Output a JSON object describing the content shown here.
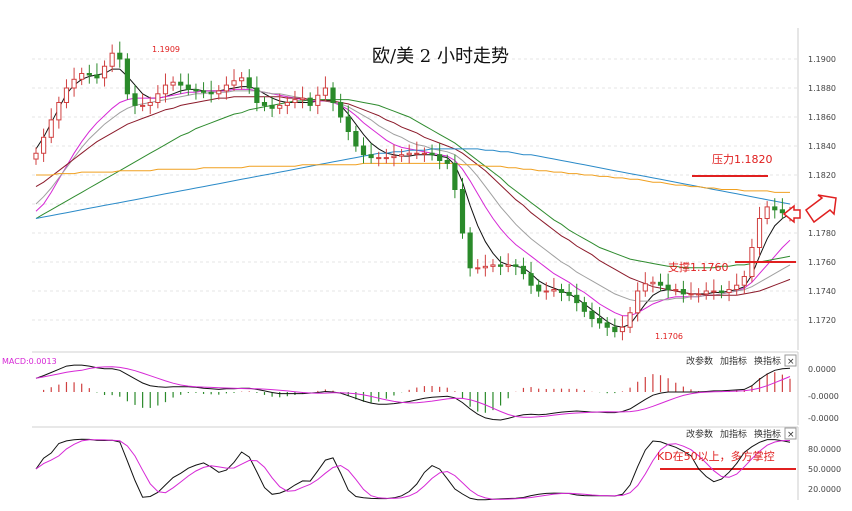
{
  "chart_data": [
    {
      "type": "candlestick",
      "title": "欧/美 2 小时走势",
      "ylim": [
        1.17,
        1.192
      ],
      "yticks": [
        "1.1900",
        "1.1880",
        "1.1860",
        "1.1840",
        "1.1820",
        "1.1780",
        "1.1760",
        "1.1740",
        "1.1720"
      ],
      "annotations": {
        "high": "1.1909",
        "low": "1.1706",
        "resistance": "压力1.1820",
        "support": "支撑1.1760"
      },
      "resistance_level": 1.182,
      "support_level": 1.176,
      "close_series": [
        1.1835,
        1.1846,
        1.1858,
        1.187,
        1.188,
        1.1886,
        1.189,
        1.1889,
        1.1887,
        1.1895,
        1.1904,
        1.19,
        1.1876,
        1.1868,
        1.1868,
        1.187,
        1.1876,
        1.1882,
        1.1884,
        1.1882,
        1.1879,
        1.1878,
        1.1877,
        1.1876,
        1.1878,
        1.1882,
        1.1885,
        1.1887,
        1.188,
        1.187,
        1.1868,
        1.1866,
        1.1868,
        1.187,
        1.1872,
        1.1873,
        1.1868,
        1.1875,
        1.188,
        1.187,
        1.186,
        1.185,
        1.184,
        1.1834,
        1.1832,
        1.1832,
        1.1832,
        1.1833,
        1.1834,
        1.1835,
        1.1835,
        1.1835,
        1.1834,
        1.183,
        1.1828,
        1.181,
        1.178,
        1.1756,
        1.1756,
        1.1757,
        1.1758,
        1.1757,
        1.1758,
        1.1757,
        1.1752,
        1.1744,
        1.174,
        1.174,
        1.1741,
        1.1739,
        1.1737,
        1.1732,
        1.1726,
        1.1721,
        1.1718,
        1.1715,
        1.1712,
        1.1715,
        1.1725,
        1.174,
        1.1745,
        1.1746,
        1.1744,
        1.1741,
        1.1741,
        1.1738,
        1.1738,
        1.1738,
        1.174,
        1.174,
        1.1739,
        1.1741,
        1.1744,
        1.175,
        1.177,
        1.179,
        1.1798,
        1.1796,
        1.1794,
        1.1794
      ],
      "ma_series": [
        {
          "color": "#111111",
          "values": [
            1.1838,
            1.1846,
            1.1856,
            1.1866,
            1.1876,
            1.1882,
            1.1886,
            1.1888,
            1.1889,
            1.189,
            1.1893,
            1.1893,
            1.1888,
            1.1882,
            1.1876,
            1.1873,
            1.1873,
            1.1874,
            1.1876,
            1.1878,
            1.1879,
            1.1879,
            1.1878,
            1.1878,
            1.1878,
            1.1879,
            1.188,
            1.1881,
            1.1881,
            1.1879,
            1.1876,
            1.1873,
            1.1871,
            1.187,
            1.187,
            1.187,
            1.187,
            1.1871,
            1.1872,
            1.1871,
            1.1868,
            1.1862,
            1.1855,
            1.1848,
            1.1842,
            1.1838,
            1.1835,
            1.1834,
            1.1833,
            1.1833,
            1.1834,
            1.1834,
            1.1834,
            1.1833,
            1.1832,
            1.1827,
            1.1815,
            1.1799,
            1.1785,
            1.1774,
            1.1766,
            1.176,
            1.1758,
            1.1757,
            1.1756,
            1.1752,
            1.1747,
            1.1744,
            1.1742,
            1.174,
            1.1738,
            1.1735,
            1.1731,
            1.1727,
            1.1723,
            1.1719,
            1.1716,
            1.1715,
            1.1717,
            1.1724,
            1.1731,
            1.1737,
            1.174,
            1.1741,
            1.174,
            1.1739,
            1.1738,
            1.1738,
            1.1738,
            1.1739,
            1.1739,
            1.174,
            1.1741,
            1.1743,
            1.1751,
            1.1764,
            1.1776,
            1.1785,
            1.179,
            1.1793
          ]
        },
        {
          "color": "#d628d6",
          "values": [
            1.1795,
            1.18,
            1.1808,
            1.1817,
            1.1826,
            1.1835,
            1.1843,
            1.185,
            1.1856,
            1.1861,
            1.1866,
            1.187,
            1.1872,
            1.1873,
            1.1873,
            1.1873,
            1.1873,
            1.1874,
            1.1875,
            1.1876,
            1.1877,
            1.1877,
            1.1878,
            1.1878,
            1.1878,
            1.1878,
            1.1879,
            1.1879,
            1.1879,
            1.1878,
            1.1877,
            1.1876,
            1.1875,
            1.1874,
            1.1873,
            1.1872,
            1.1871,
            1.1871,
            1.1871,
            1.187,
            1.1868,
            1.1865,
            1.1861,
            1.1856,
            1.1852,
            1.1848,
            1.1844,
            1.1841,
            1.1839,
            1.1838,
            1.1837,
            1.1836,
            1.1835,
            1.1834,
            1.1833,
            1.183,
            1.1824,
            1.1816,
            1.1807,
            1.1798,
            1.179,
            1.1783,
            1.1777,
            1.1772,
            1.1768,
            1.1764,
            1.176,
            1.1756,
            1.1752,
            1.1749,
            1.1746,
            1.1742,
            1.1739,
            1.1735,
            1.1731,
            1.1728,
            1.1725,
            1.1723,
            1.1723,
            1.1725,
            1.1728,
            1.1731,
            1.1733,
            1.1735,
            1.1736,
            1.1736,
            1.1736,
            1.1736,
            1.1737,
            1.1737,
            1.1738,
            1.1739,
            1.174,
            1.1742,
            1.1746,
            1.1752,
            1.1758,
            1.1764,
            1.177,
            1.1775
          ]
        },
        {
          "color": "#a0a0a0",
          "values": [
            1.18,
            1.1805,
            1.1811,
            1.1818,
            1.1825,
            1.1832,
            1.1839,
            1.1845,
            1.185,
            1.1855,
            1.1859,
            1.1863,
            1.1866,
            1.1868,
            1.1869,
            1.187,
            1.1871,
            1.1872,
            1.1873,
            1.1874,
            1.1875,
            1.1876,
            1.1876,
            1.1877,
            1.1877,
            1.1877,
            1.1878,
            1.1878,
            1.1878,
            1.1878,
            1.1877,
            1.1876,
            1.1876,
            1.1875,
            1.1874,
            1.1873,
            1.1872,
            1.1872,
            1.1871,
            1.187,
            1.1869,
            1.1867,
            1.1864,
            1.1861,
            1.1858,
            1.1854,
            1.1851,
            1.1848,
            1.1846,
            1.1843,
            1.1841,
            1.184,
            1.1838,
            1.1837,
            1.1836,
            1.1834,
            1.183,
            1.1825,
            1.1819,
            1.1812,
            1.1805,
            1.1798,
            1.1792,
            1.1786,
            1.1781,
            1.1776,
            1.1772,
            1.1768,
            1.1764,
            1.176,
            1.1757,
            1.1753,
            1.175,
            1.1747,
            1.1744,
            1.1741,
            1.1738,
            1.1736,
            1.1734,
            1.1733,
            1.1733,
            1.1733,
            1.1734,
            1.1734,
            1.1735,
            1.1735,
            1.1736,
            1.1736,
            1.1737,
            1.1737,
            1.1738,
            1.1739,
            1.174,
            1.1741,
            1.1743,
            1.1746,
            1.1749,
            1.1752,
            1.1755,
            1.1758
          ]
        },
        {
          "color": "#8b1a2a",
          "values": [
            1.1812,
            1.1815,
            1.1819,
            1.1823,
            1.1827,
            1.1831,
            1.1835,
            1.1839,
            1.1843,
            1.1846,
            1.1849,
            1.1852,
            1.1855,
            1.1857,
            1.1859,
            1.1861,
            1.1863,
            1.1865,
            1.1866,
            1.1868,
            1.1869,
            1.187,
            1.1871,
            1.1872,
            1.1873,
            1.1873,
            1.1874,
            1.1874,
            1.1874,
            1.1874,
            1.1874,
            1.1874,
            1.1874,
            1.1873,
            1.1873,
            1.1873,
            1.1872,
            1.1872,
            1.1871,
            1.1871,
            1.187,
            1.1869,
            1.1867,
            1.1865,
            1.1863,
            1.1861,
            1.1858,
            1.1856,
            1.1853,
            1.1851,
            1.1849,
            1.1846,
            1.1844,
            1.1842,
            1.184,
            1.1838,
            1.1835,
            1.1831,
            1.1827,
            1.1823,
            1.1818,
            1.1813,
            1.1808,
            1.1803,
            1.1799,
            1.1794,
            1.179,
            1.1786,
            1.1782,
            1.1778,
            1.1775,
            1.1771,
            1.1768,
            1.1765,
            1.1761,
            1.1758,
            1.1755,
            1.1752,
            1.1749,
            1.1747,
            1.1745,
            1.1743,
            1.1742,
            1.1741,
            1.174,
            1.1739,
            1.1738,
            1.1738,
            1.1737,
            1.1737,
            1.1737,
            1.1737,
            1.1737,
            1.1738,
            1.1739,
            1.174,
            1.1742,
            1.1744,
            1.1746,
            1.1748
          ]
        },
        {
          "color": "#2e8b2e",
          "values": [
            1.179,
            1.1793,
            1.1796,
            1.1799,
            1.1802,
            1.1805,
            1.1808,
            1.1811,
            1.1814,
            1.1817,
            1.182,
            1.1823,
            1.1826,
            1.1829,
            1.1832,
            1.1835,
            1.1838,
            1.1841,
            1.1844,
            1.1847,
            1.1849,
            1.1852,
            1.1854,
            1.1856,
            1.1858,
            1.186,
            1.1862,
            1.1863,
            1.1865,
            1.1866,
            1.1867,
            1.1868,
            1.1869,
            1.187,
            1.1871,
            1.1871,
            1.1872,
            1.1872,
            1.1872,
            1.1872,
            1.1872,
            1.1872,
            1.1871,
            1.187,
            1.1869,
            1.1868,
            1.1866,
            1.1864,
            1.1862,
            1.186,
            1.1857,
            1.1854,
            1.1851,
            1.1848,
            1.1845,
            1.1842,
            1.1838,
            1.1834,
            1.183,
            1.1826,
            1.1822,
            1.1818,
            1.1813,
            1.1809,
            1.1805,
            1.1801,
            1.1797,
            1.1793,
            1.1789,
            1.1786,
            1.1782,
            1.1779,
            1.1776,
            1.1773,
            1.177,
            1.1768,
            1.1766,
            1.1764,
            1.1762,
            1.1761,
            1.176,
            1.1759,
            1.1758,
            1.1757,
            1.1757,
            1.1756,
            1.1756,
            1.1756,
            1.1756,
            1.1756,
            1.1757,
            1.1757,
            1.1758,
            1.1758,
            1.1759,
            1.176,
            1.1761,
            1.1762,
            1.1763,
            1.1764
          ]
        },
        {
          "color": "#2a8ac8",
          "values": [
            1.179,
            1.1791,
            1.1792,
            1.1793,
            1.1794,
            1.1795,
            1.1796,
            1.1797,
            1.1798,
            1.1799,
            1.18,
            1.1801,
            1.1802,
            1.1803,
            1.1804,
            1.1805,
            1.1806,
            1.1807,
            1.1808,
            1.1809,
            1.181,
            1.1811,
            1.1812,
            1.1813,
            1.1814,
            1.1815,
            1.1816,
            1.1817,
            1.1818,
            1.1819,
            1.182,
            1.1821,
            1.1822,
            1.1823,
            1.1824,
            1.1825,
            1.1826,
            1.1827,
            1.1828,
            1.1829,
            1.183,
            1.1831,
            1.1832,
            1.1833,
            1.1834,
            1.1835,
            1.1835,
            1.1836,
            1.1836,
            1.1837,
            1.1837,
            1.1837,
            1.1838,
            1.1838,
            1.1838,
            1.1838,
            1.1838,
            1.1838,
            1.1838,
            1.1837,
            1.1837,
            1.1836,
            1.1836,
            1.1835,
            1.1834,
            1.1834,
            1.1833,
            1.1832,
            1.1831,
            1.183,
            1.1829,
            1.1828,
            1.1827,
            1.1826,
            1.1825,
            1.1824,
            1.1823,
            1.1822,
            1.1821,
            1.182,
            1.1819,
            1.1818,
            1.1817,
            1.1816,
            1.1815,
            1.1814,
            1.1813,
            1.1812,
            1.1811,
            1.181,
            1.1809,
            1.1808,
            1.1807,
            1.1806,
            1.1805,
            1.1804,
            1.1803,
            1.1802,
            1.1801,
            1.18
          ]
        },
        {
          "color": "#f0a020",
          "values": [
            1.182,
            1.182,
            1.182,
            1.1821,
            1.1821,
            1.1821,
            1.1822,
            1.1822,
            1.1822,
            1.1822,
            1.1822,
            1.1823,
            1.1823,
            1.1823,
            1.1823,
            1.1823,
            1.1824,
            1.1824,
            1.1824,
            1.1824,
            1.1824,
            1.1824,
            1.1825,
            1.1825,
            1.1825,
            1.1825,
            1.1825,
            1.1825,
            1.1826,
            1.1826,
            1.1826,
            1.1826,
            1.1826,
            1.1826,
            1.1826,
            1.1827,
            1.1827,
            1.1827,
            1.1827,
            1.1827,
            1.1827,
            1.1827,
            1.1827,
            1.1828,
            1.1828,
            1.1828,
            1.1828,
            1.1828,
            1.1828,
            1.1828,
            1.1828,
            1.1828,
            1.1828,
            1.1828,
            1.1828,
            1.1828,
            1.1827,
            1.1827,
            1.1827,
            1.1826,
            1.1826,
            1.1826,
            1.1825,
            1.1825,
            1.1824,
            1.1824,
            1.1823,
            1.1823,
            1.1822,
            1.1822,
            1.1821,
            1.1821,
            1.182,
            1.182,
            1.1819,
            1.1819,
            1.1818,
            1.1818,
            1.1817,
            1.1817,
            1.1816,
            1.1815,
            1.1815,
            1.1814,
            1.1813,
            1.1813,
            1.1812,
            1.1812,
            1.1811,
            1.1811,
            1.181,
            1.181,
            1.181,
            1.1809,
            1.1809,
            1.1809,
            1.1809,
            1.1808,
            1.1808,
            1.1808
          ]
        }
      ]
    },
    {
      "type": "macd",
      "label": "MACD:0.0013",
      "yticks": [
        "0.0000",
        "-0.0000",
        "-0.0000"
      ],
      "buttons": [
        "改参数",
        "加指标",
        "换指标"
      ],
      "close_label": "×"
    },
    {
      "type": "kd",
      "yticks": [
        "80.0000",
        "50.0000",
        "20.0000"
      ],
      "annotation": "KD在50以上，多方掌控",
      "buttons": [
        "改参数",
        "加指标",
        "换指标"
      ],
      "close_label": "×"
    }
  ],
  "colors": {
    "up": "#d04040",
    "down": "#2a8a2a",
    "annotation": "#e02020",
    "macd_dif": "#111111",
    "macd_dea": "#d628d6",
    "k_line": "#111111",
    "d_line": "#d628d6"
  }
}
